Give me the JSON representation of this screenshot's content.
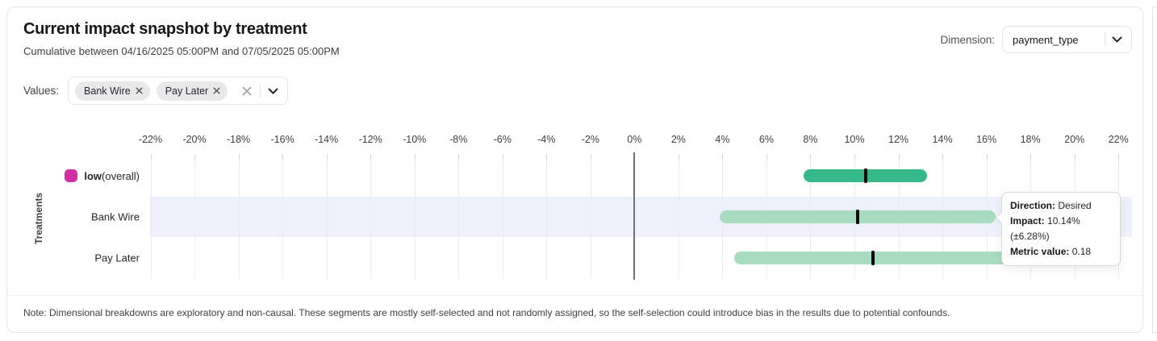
{
  "header": {
    "title": "Current impact snapshot by treatment",
    "subtitle": "Cumulative between 04/16/2025 05:00PM and 07/05/2025 05:00PM",
    "dimension_label": "Dimension:",
    "dimension_value": "payment_type"
  },
  "filters": {
    "values_label": "Values:",
    "chips": [
      {
        "label": "Bank Wire"
      },
      {
        "label": "Pay Later"
      }
    ]
  },
  "chart_data": {
    "type": "bar",
    "subtype": "horizontal_confidence_interval",
    "ylabel": "Treatments",
    "x_unit": "percent",
    "xlim": [
      -22,
      22
    ],
    "x_ticks": [
      -22,
      -20,
      -18,
      -16,
      -14,
      -12,
      -10,
      -8,
      -6,
      -4,
      -2,
      0,
      2,
      4,
      6,
      8,
      10,
      12,
      14,
      16,
      18,
      20,
      22
    ],
    "x_tick_labels": [
      "-22%",
      "-20%",
      "-18%",
      "-16%",
      "-14%",
      "-12%",
      "-10%",
      "-8%",
      "-6%",
      "-4%",
      "-2%",
      "0%",
      "2%",
      "4%",
      "6%",
      "8%",
      "10%",
      "12%",
      "14%",
      "16%",
      "18%",
      "20%",
      "22%"
    ],
    "grid": true,
    "zero_line": true,
    "marker_color": "#0b0b0d",
    "highlight_color": "#eef0fb",
    "rows": [
      {
        "label_bold": "low",
        "label_rest": "(overall)",
        "swatch_color": "#d22fa2",
        "impact": 10.5,
        "ci_low": 7.7,
        "ci_high": 13.3,
        "bar_color": "#35b989",
        "highlighted": false
      },
      {
        "label": "Bank Wire",
        "impact": 10.14,
        "ci_low": 3.86,
        "ci_high": 16.42,
        "bar_color": "#a8dcc0",
        "highlighted": true
      },
      {
        "label": "Pay Later",
        "impact": 10.84,
        "ci_low": 4.54,
        "ci_high": 17.14,
        "bar_color": "#a8dcc0",
        "highlighted": false
      }
    ]
  },
  "tooltip": {
    "attached_to": "Bank Wire",
    "direction_label": "Direction:",
    "direction_value": "Desired",
    "impact_label": "Impact:",
    "impact_value": "10.14% (±6.28%)",
    "metric_label": "Metric value:",
    "metric_value": "0.18"
  },
  "note": "Note: Dimensional breakdowns are exploratory and non-causal. These segments are mostly self-selected and not randomly assigned, so the self-selection could introduce bias in the results due to potential confounds."
}
